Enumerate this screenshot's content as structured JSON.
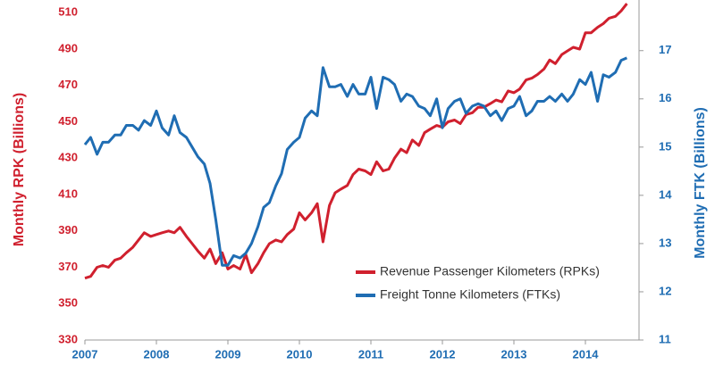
{
  "chart_data": {
    "type": "line",
    "y_label": "Monthly RPK (Billions)",
    "y2_label": "Monthly FTK (Billions)",
    "xlim": [
      2007,
      2014.75
    ],
    "xticks": [
      2007,
      2008,
      2009,
      2010,
      2011,
      2012,
      2013,
      2014
    ],
    "ylim": [
      330,
      517
    ],
    "yticks": [
      330,
      350,
      370,
      390,
      410,
      430,
      450,
      470,
      490,
      510
    ],
    "y2lim": [
      11,
      18.05
    ],
    "y2ticks": [
      11,
      12,
      13,
      14,
      15,
      16,
      17
    ],
    "legend": "lower right",
    "x": [
      2007,
      2007.08,
      2007.17,
      2007.25,
      2007.33,
      2007.42,
      2007.5,
      2007.58,
      2007.67,
      2007.75,
      2007.83,
      2007.92,
      2008,
      2008.08,
      2008.17,
      2008.25,
      2008.33,
      2008.42,
      2008.5,
      2008.58,
      2008.67,
      2008.75,
      2008.83,
      2008.92,
      2009,
      2009.08,
      2009.17,
      2009.25,
      2009.33,
      2009.42,
      2009.5,
      2009.58,
      2009.67,
      2009.75,
      2009.83,
      2009.92,
      2010,
      2010.08,
      2010.17,
      2010.25,
      2010.33,
      2010.42,
      2010.5,
      2010.58,
      2010.67,
      2010.75,
      2010.83,
      2010.92,
      2011,
      2011.08,
      2011.17,
      2011.25,
      2011.33,
      2011.42,
      2011.5,
      2011.58,
      2011.67,
      2011.75,
      2011.83,
      2011.92,
      2012,
      2012.08,
      2012.17,
      2012.25,
      2012.33,
      2012.42,
      2012.5,
      2012.58,
      2012.67,
      2012.75,
      2012.83,
      2012.92,
      2013,
      2013.08,
      2013.17,
      2013.25,
      2013.33,
      2013.42,
      2013.5,
      2013.58,
      2013.67,
      2013.75,
      2013.83,
      2013.92,
      2014,
      2014.08,
      2014.17,
      2014.25,
      2014.33,
      2014.42,
      2014.5,
      2014.58
    ],
    "series": [
      {
        "name": "Revenue Passenger Kilometers (RPKs)",
        "color": "#d0202e",
        "axis": "y",
        "values": [
          364,
          365,
          370,
          371,
          370,
          374,
          375,
          378,
          381,
          385,
          389,
          387,
          388,
          389,
          390,
          389,
          392,
          387,
          383,
          379,
          375,
          380,
          372,
          378,
          369,
          371,
          369,
          377,
          367,
          372,
          378,
          383,
          385,
          384,
          388,
          391,
          400,
          396,
          400,
          405,
          384,
          404,
          411,
          413,
          415,
          421,
          424,
          423,
          421,
          428,
          423,
          424,
          430,
          435,
          433,
          440,
          437,
          444,
          446,
          448,
          447,
          450,
          451,
          449,
          454,
          455,
          458,
          458,
          460,
          462,
          461,
          467,
          466,
          468,
          473,
          474,
          476,
          479,
          484,
          482,
          487,
          489,
          491,
          490,
          499,
          499,
          502,
          504,
          507,
          508,
          511,
          515
        ]
      },
      {
        "name": "Freight Tonne Kilometers (FTKs)",
        "color": "#1f6db3",
        "axis": "y2",
        "values": [
          15.05,
          15.2,
          14.85,
          15.1,
          15.1,
          15.25,
          15.25,
          15.45,
          15.45,
          15.35,
          15.55,
          15.45,
          15.75,
          15.4,
          15.25,
          15.65,
          15.3,
          15.2,
          15.0,
          14.8,
          14.65,
          14.25,
          13.5,
          12.55,
          12.55,
          12.75,
          12.7,
          12.8,
          13.0,
          13.35,
          13.75,
          13.85,
          14.2,
          14.45,
          14.95,
          15.1,
          15.2,
          15.6,
          15.75,
          15.65,
          16.65,
          16.25,
          16.25,
          16.3,
          16.05,
          16.3,
          16.1,
          16.1,
          16.45,
          15.8,
          16.45,
          16.4,
          16.3,
          15.95,
          16.1,
          16.05,
          15.85,
          15.8,
          15.65,
          16.0,
          15.4,
          15.8,
          15.95,
          16.0,
          15.7,
          15.85,
          15.9,
          15.85,
          15.65,
          15.75,
          15.55,
          15.8,
          15.85,
          16.05,
          15.65,
          15.75,
          15.95,
          15.95,
          16.05,
          15.95,
          16.1,
          15.95,
          16.1,
          16.4,
          16.3,
          16.55,
          15.95,
          16.5,
          16.45,
          16.55,
          16.8,
          16.85
        ]
      }
    ]
  }
}
